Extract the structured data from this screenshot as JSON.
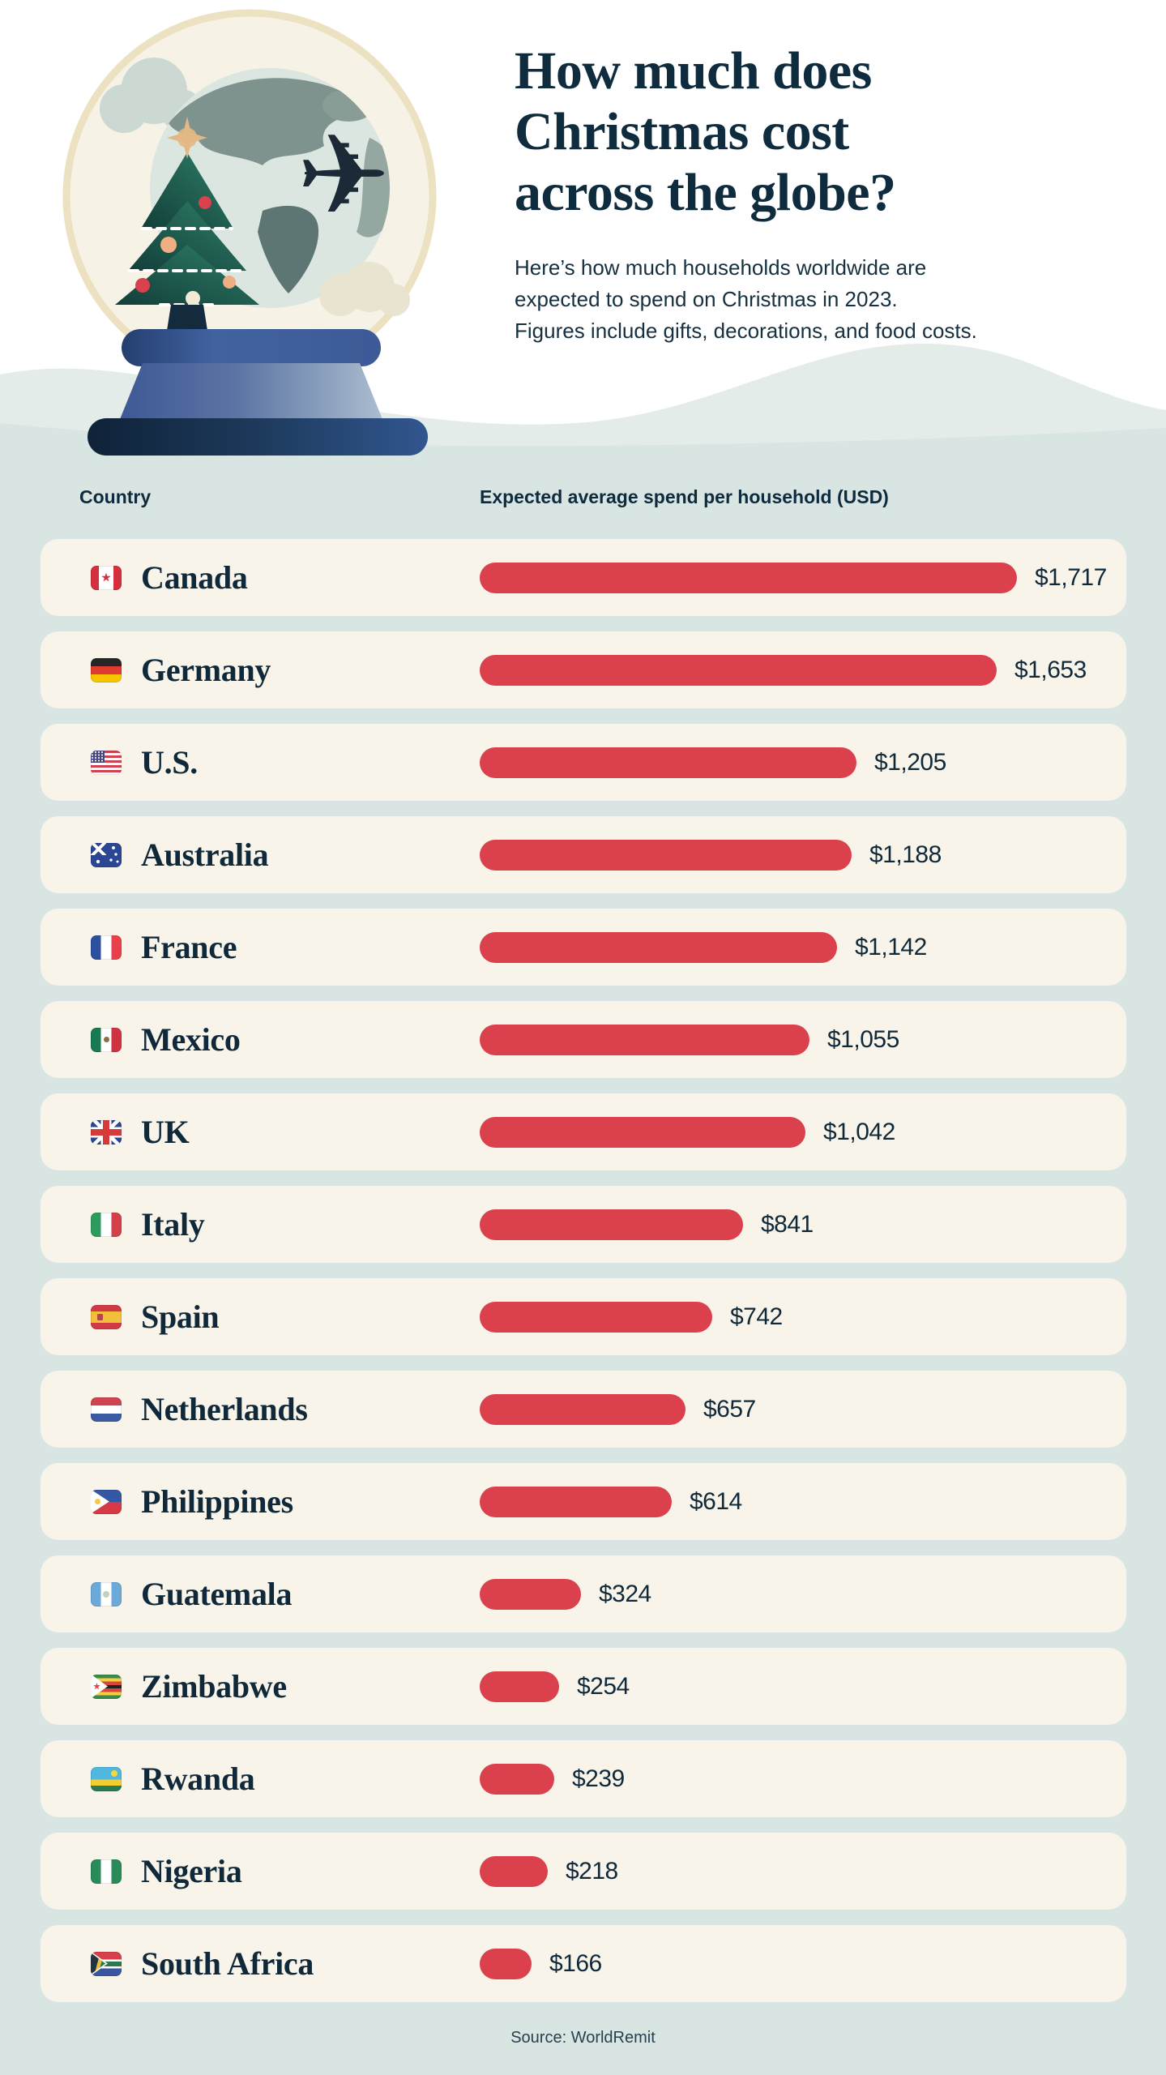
{
  "header": {
    "title_lines": [
      "How much does",
      "Christmas cost",
      "across the globe?"
    ],
    "subtitle_lines": [
      "Here’s how much households worldwide are",
      "expected to spend on Christmas in 2023.",
      "Figures include gifts, decorations, and food costs."
    ]
  },
  "table": {
    "col_country": "Country",
    "col_spend": "Expected average spend per household (USD)",
    "max_value": 1717,
    "rows": [
      {
        "country": "Canada",
        "flag": "ca",
        "value": 1717,
        "label": "$1,717"
      },
      {
        "country": "Germany",
        "flag": "de",
        "value": 1653,
        "label": "$1,653"
      },
      {
        "country": "U.S.",
        "flag": "us",
        "value": 1205,
        "label": "$1,205"
      },
      {
        "country": "Australia",
        "flag": "au",
        "value": 1188,
        "label": "$1,188"
      },
      {
        "country": "France",
        "flag": "fr",
        "value": 1142,
        "label": "$1,142"
      },
      {
        "country": "Mexico",
        "flag": "mx",
        "value": 1055,
        "label": "$1,055"
      },
      {
        "country": "UK",
        "flag": "gb",
        "value": 1042,
        "label": "$1,042"
      },
      {
        "country": "Italy",
        "flag": "it",
        "value": 841,
        "label": "$841"
      },
      {
        "country": "Spain",
        "flag": "es",
        "value": 742,
        "label": "$742"
      },
      {
        "country": "Netherlands",
        "flag": "nl",
        "value": 657,
        "label": "$657"
      },
      {
        "country": "Philippines",
        "flag": "ph",
        "value": 614,
        "label": "$614"
      },
      {
        "country": "Guatemala",
        "flag": "gt",
        "value": 324,
        "label": "$324"
      },
      {
        "country": "Zimbabwe",
        "flag": "zw",
        "value": 254,
        "label": "$254"
      },
      {
        "country": "Rwanda",
        "flag": "rw",
        "value": 239,
        "label": "$239"
      },
      {
        "country": "Nigeria",
        "flag": "ng",
        "value": 218,
        "label": "$218"
      },
      {
        "country": "South Africa",
        "flag": "za",
        "value": 166,
        "label": "$166"
      }
    ]
  },
  "footer": {
    "source": "Source: WorldRemit"
  },
  "colors": {
    "bar": "#da414c",
    "card": "#f8f4e9",
    "background": "#d9e5e2",
    "wave_accent": "#e3ece8",
    "navy_text": "#10293a",
    "white": "#ffffff"
  },
  "chart_data": {
    "type": "bar",
    "orientation": "horizontal",
    "title": "How much does Christmas cost across the globe?",
    "subtitle": "Here’s how much households worldwide are expected to spend on Christmas in 2023. Figures include gifts, decorations, and food costs.",
    "categories": [
      "Canada",
      "Germany",
      "U.S.",
      "Australia",
      "France",
      "Mexico",
      "UK",
      "Italy",
      "Spain",
      "Netherlands",
      "Philippines",
      "Guatemala",
      "Zimbabwe",
      "Rwanda",
      "Nigeria",
      "South Africa"
    ],
    "values": [
      1717,
      1653,
      1205,
      1188,
      1142,
      1055,
      1042,
      841,
      742,
      657,
      614,
      324,
      254,
      239,
      218,
      166
    ],
    "value_labels": [
      "$1,717",
      "$1,653",
      "$1,205",
      "$1,188",
      "$1,142",
      "$1,055",
      "$1,042",
      "$841",
      "$742",
      "$657",
      "$614",
      "$324",
      "$254",
      "$239",
      "$218",
      "$166"
    ],
    "xlabel": "Expected average spend per household (USD)",
    "ylabel": "Country",
    "xlim": [
      0,
      1717
    ],
    "grid": false,
    "legend": false,
    "bar_color": "#da414c",
    "source": "Source: WorldRemit",
    "unit": "USD per household, 2023"
  }
}
